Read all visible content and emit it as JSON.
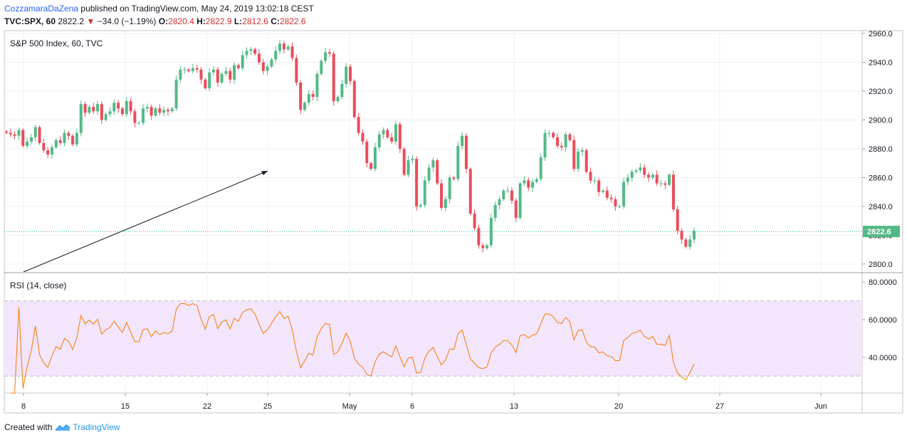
{
  "header": {
    "author": "CozzamaraDaZena",
    "published": "published on TradingView.com, May 24, 2019 13:02:18 CEST",
    "symbol": "TVC:SPX, 60",
    "last": "2822.2",
    "change_arrow": "▼",
    "change": "−34.0 (−1.19%)",
    "o_label": "O:",
    "o_value": "2820.4",
    "h_label": "H:",
    "h_value": "2822.9",
    "l_label": "L:",
    "l_value": "2812.6",
    "c_label": "C:",
    "c_value": "2822.6"
  },
  "footer": {
    "created_with": "Created with",
    "brand": "TradingView"
  },
  "colors": {
    "up": "#53b987",
    "down": "#eb4d5c",
    "rsi_line": "#f57c00",
    "rsi_band": "#f3e5fc",
    "price_line": "#26a69a",
    "axis_text": "#131722",
    "grid": "#eef0f3"
  },
  "chart_data": {
    "type": "candlestick",
    "title": "S&P 500 Index, 60, TVC",
    "price_axis": {
      "ticks": [
        "2960.0",
        "2940.0",
        "2920.0",
        "2900.0",
        "2880.0",
        "2860.0",
        "2840.0",
        "2820.0",
        "2800.0"
      ],
      "ylim": [
        2794,
        2962
      ]
    },
    "last_price_label": "2822.6",
    "last_price": 2822.6,
    "x_axis_ticks": [
      "8",
      "15",
      "22",
      "25",
      "May",
      "6",
      "13",
      "20",
      "27",
      "Jun"
    ],
    "closes": [
      2891,
      2890,
      2889,
      2893,
      2882,
      2885,
      2888,
      2895,
      2884,
      2879,
      2876,
      2881,
      2886,
      2884,
      2891,
      2889,
      2883,
      2891,
      2911,
      2905,
      2909,
      2906,
      2911,
      2900,
      2904,
      2906,
      2912,
      2908,
      2904,
      2913,
      2906,
      2898,
      2898,
      2908,
      2909,
      2903,
      2908,
      2905,
      2907,
      2906,
      2908,
      2928,
      2935,
      2935,
      2934,
      2936,
      2935,
      2928,
      2922,
      2933,
      2935,
      2926,
      2932,
      2934,
      2928,
      2938,
      2936,
      2945,
      2948,
      2949,
      2946,
      2940,
      2934,
      2937,
      2942,
      2948,
      2953,
      2949,
      2951,
      2943,
      2926,
      2907,
      2912,
      2918,
      2916,
      2932,
      2941,
      2947,
      2946,
      2913,
      2916,
      2925,
      2937,
      2927,
      2902,
      2891,
      2885,
      2870,
      2866,
      2881,
      2890,
      2893,
      2888,
      2885,
      2897,
      2880,
      2862,
      2872,
      2873,
      2840,
      2841,
      2858,
      2867,
      2872,
      2856,
      2839,
      2845,
      2860,
      2859,
      2882,
      2889,
      2866,
      2835,
      2825,
      2813,
      2811,
      2813,
      2832,
      2841,
      2845,
      2851,
      2851,
      2844,
      2832,
      2856,
      2858,
      2853,
      2857,
      2859,
      2874,
      2891,
      2891,
      2888,
      2882,
      2881,
      2890,
      2886,
      2866,
      2878,
      2879,
      2864,
      2858,
      2858,
      2850,
      2851,
      2846,
      2845,
      2840,
      2840,
      2857,
      2860,
      2864,
      2865,
      2867,
      2862,
      2860,
      2862,
      2856,
      2856,
      2855,
      2862,
      2838,
      2823,
      2817,
      2812,
      2817,
      2823
    ]
  },
  "rsi": {
    "title": "RSI (14, close)",
    "ticks": [
      "80.0000",
      "60.0000",
      "40.0000"
    ],
    "upper": 70,
    "lower": 30,
    "ylim": [
      21,
      85
    ]
  }
}
